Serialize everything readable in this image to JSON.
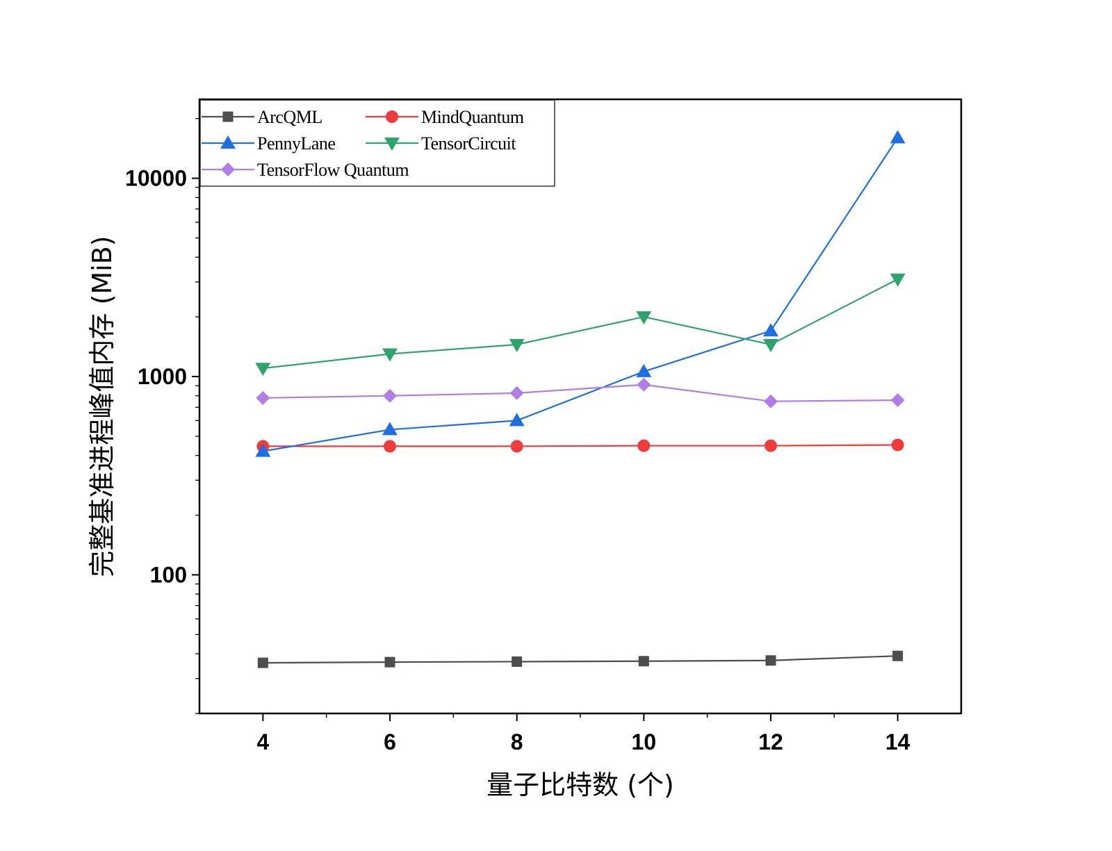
{
  "chart_data": {
    "type": "line",
    "xlabel": "量子比特数 (个)",
    "ylabel": "完整基准进程峰值内存 (MiB)",
    "yscale": "log",
    "xlim": [
      3,
      15
    ],
    "ylim": [
      20,
      25000
    ],
    "x": [
      4,
      6,
      8,
      10,
      12,
      14
    ],
    "x_ticks": [
      "4",
      "6",
      "8",
      "10",
      "12",
      "14"
    ],
    "y_ticks": [
      {
        "value": 100,
        "label": "100"
      },
      {
        "value": 1000,
        "label": "1000"
      },
      {
        "value": 10000,
        "label": "10000"
      }
    ],
    "legend_position": "top-left",
    "series": [
      {
        "name": "ArcQML",
        "color": "#4d4d4d",
        "marker": "square",
        "values": [
          36,
          36.3,
          36.5,
          36.7,
          37,
          39
        ]
      },
      {
        "name": "MindQuantum",
        "color": "#ef3b3b",
        "marker": "circle",
        "values": [
          445,
          445,
          445,
          448,
          448,
          452
        ]
      },
      {
        "name": "PennyLane",
        "color": "#1f6fe0",
        "marker": "triangle-up",
        "values": [
          420,
          540,
          600,
          1060,
          1700,
          16000
        ]
      },
      {
        "name": "TensorCircuit",
        "color": "#2fa36b",
        "marker": "triangle-down",
        "values": [
          1100,
          1300,
          1450,
          2000,
          1450,
          3100
        ]
      },
      {
        "name": "TensorFlow Quantum",
        "color": "#b07ee6",
        "marker": "diamond",
        "values": [
          780,
          800,
          825,
          910,
          750,
          760
        ]
      }
    ]
  }
}
